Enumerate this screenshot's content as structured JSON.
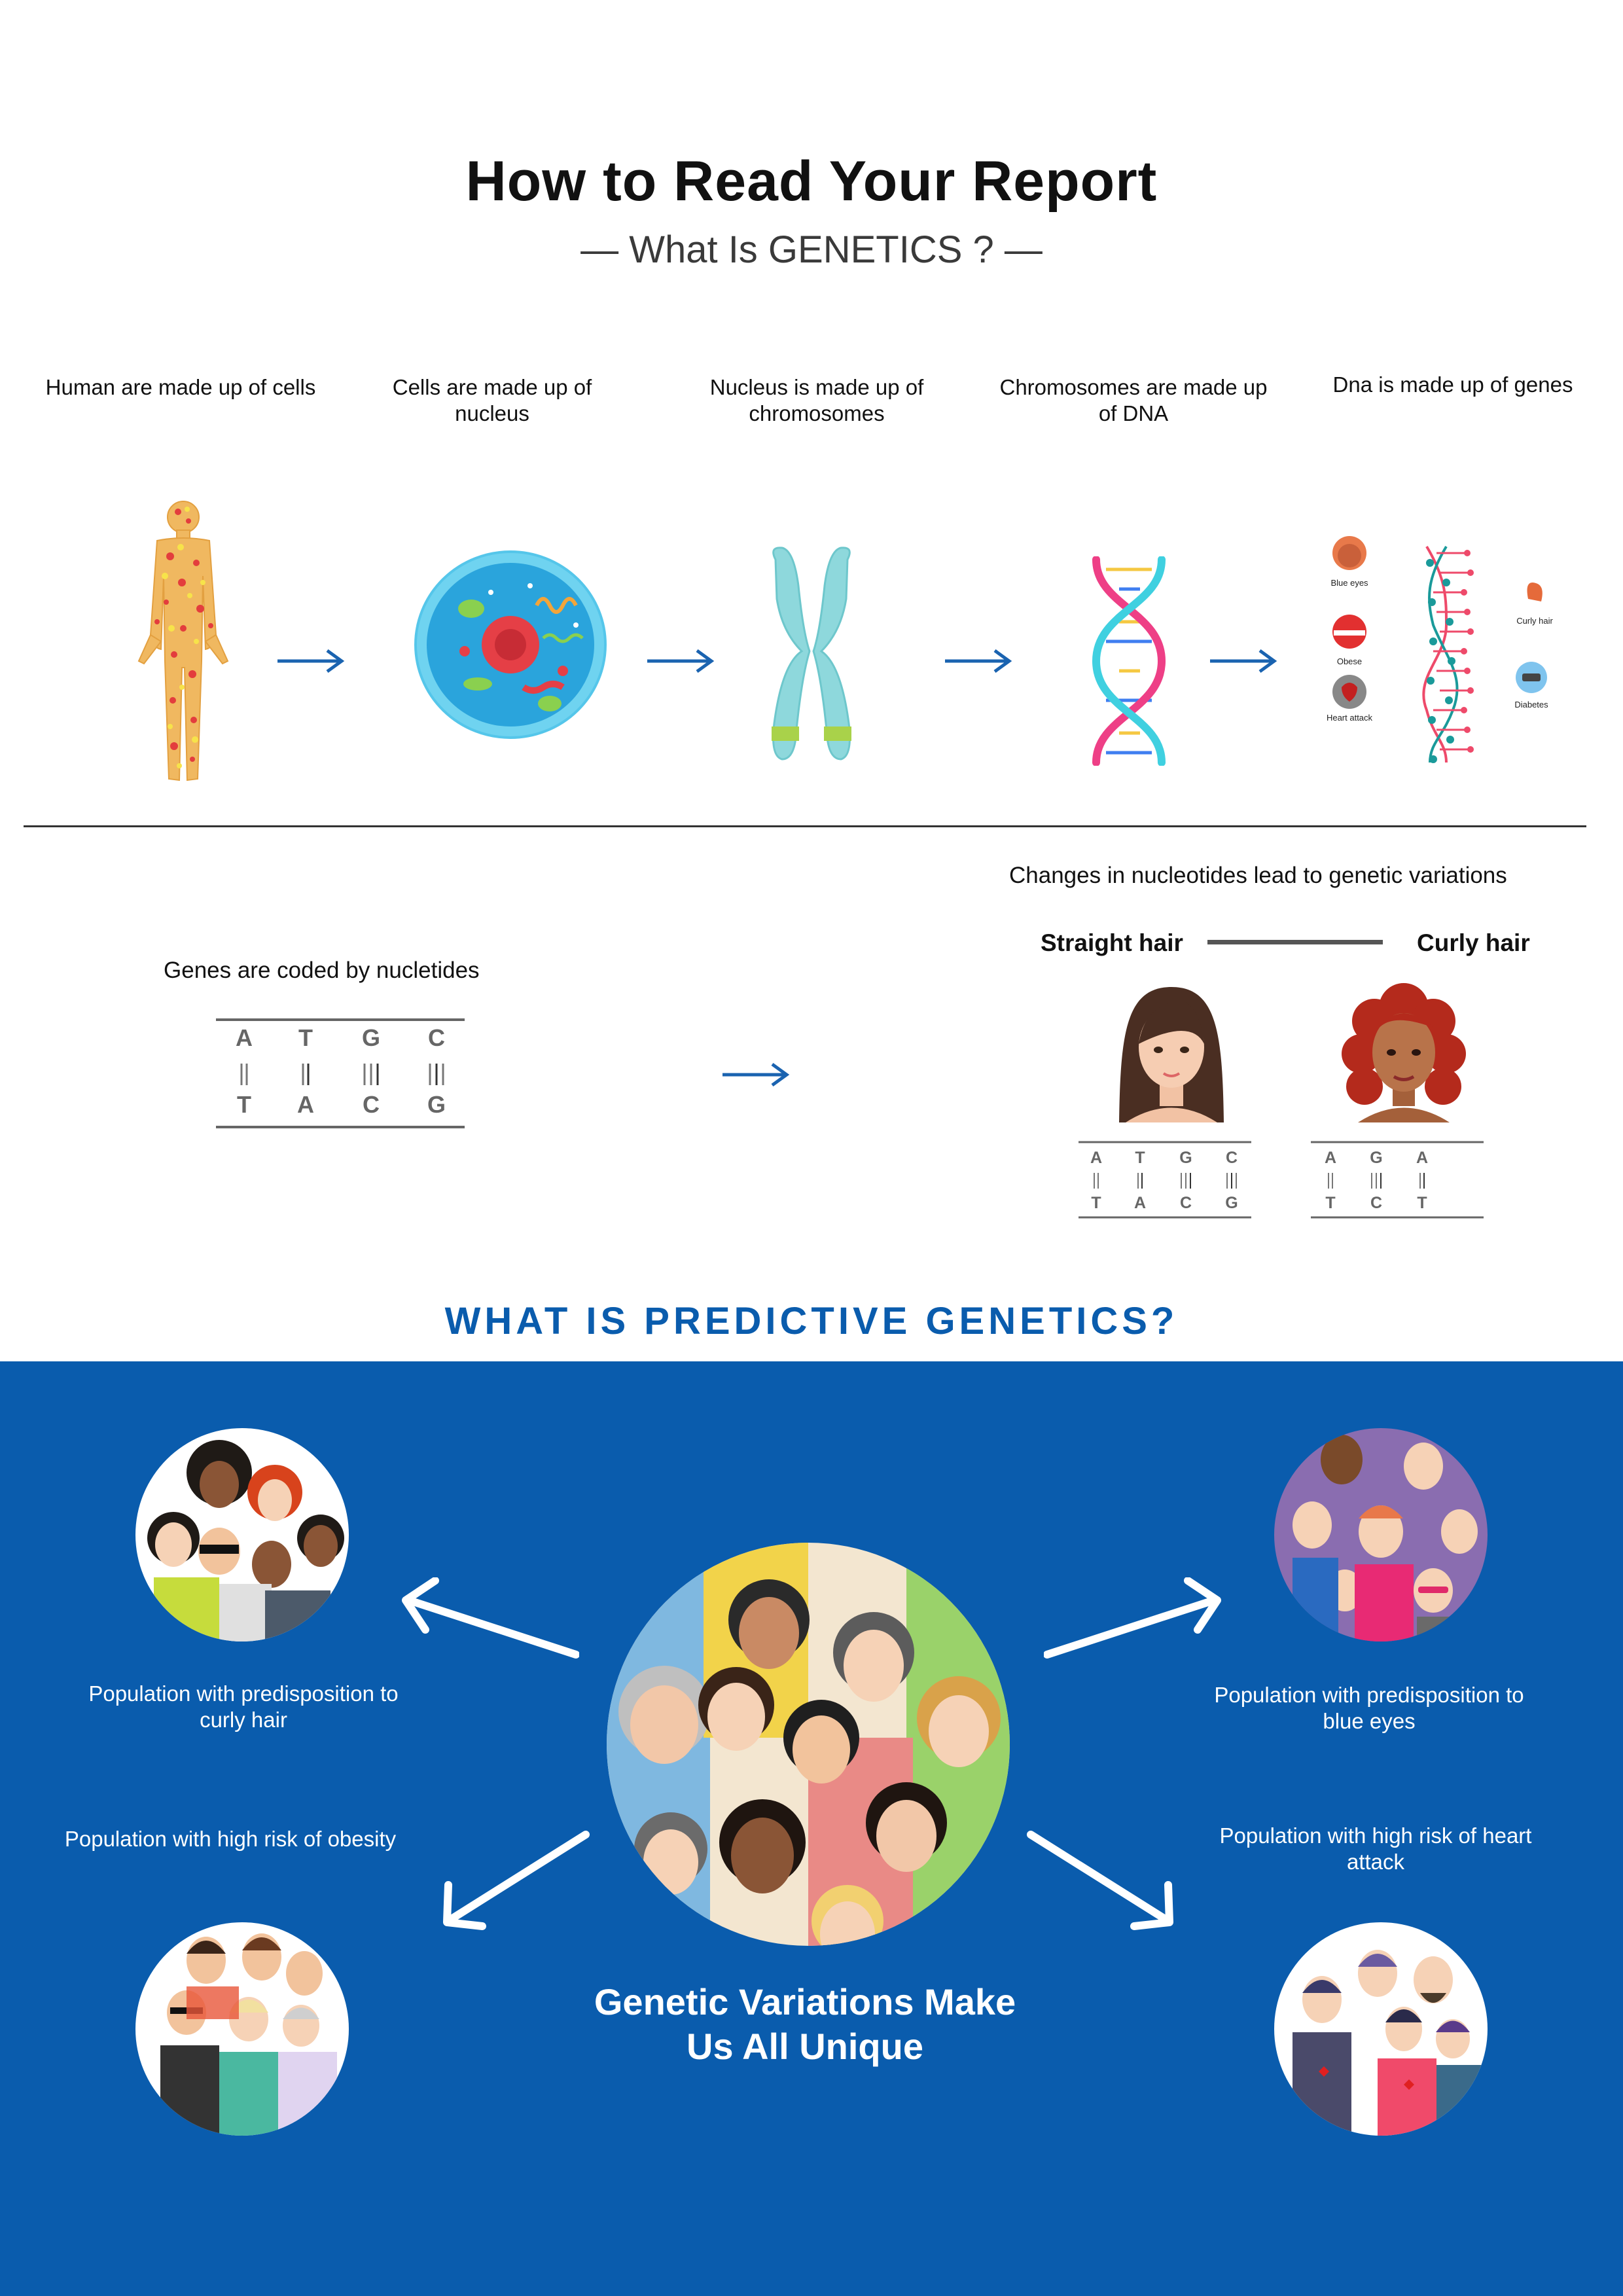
{
  "header": {
    "title": "How to Read Your Report",
    "subtitle": "— What Is GENETICS ? —"
  },
  "steps": [
    {
      "label": "Human are made up of cells",
      "icon": "human-body-icon"
    },
    {
      "label": "Cells are made up of nucleus",
      "icon": "cell-icon"
    },
    {
      "label": "Nucleus is made up of chromosomes",
      "icon": "chromosome-icon"
    },
    {
      "label": "Chromosomes are made up of DNA",
      "icon": "dna-helix-icon"
    },
    {
      "label": "Dna is made up of genes",
      "icon": "genes-icon"
    }
  ],
  "traits": {
    "blue_eyes": "Blue eyes",
    "obese": "Obese",
    "heart_attack": "Heart attack",
    "curly_hair": "Curly hair",
    "diabetes": "Diabetes"
  },
  "nucleotides": {
    "label": "Genes are coded  by nucletides",
    "top": [
      "A",
      "T",
      "G",
      "C"
    ],
    "bottom": [
      "T",
      "A",
      "C",
      "G"
    ]
  },
  "variations": {
    "heading": "Changes in nucleotides lead to genetic variations",
    "left_label": "Straight hair",
    "right_label": "Curly hair",
    "straight_top": [
      "A",
      "T",
      "G",
      "C"
    ],
    "straight_bottom": [
      "T",
      "A",
      "C",
      "G"
    ],
    "curly_top": [
      "A",
      "G",
      "A"
    ],
    "curly_bottom": [
      "T",
      "C",
      "T"
    ]
  },
  "predictive": {
    "heading": "WHAT IS PREDICTIVE GENETICS?",
    "curly": "Population with predisposition to curly hair",
    "obesity": "Population with high risk of obesity",
    "blue_eyes": "Population with predisposition to blue eyes",
    "heart": "Population with high risk of heart attack",
    "center": "Genetic Variations Make Us All Unique"
  },
  "colors": {
    "accent_blue": "#0a5cad",
    "arrow_blue": "#1a63b0",
    "dna_pink": "#ee3f86",
    "dna_cyan": "#3fd0e0"
  }
}
